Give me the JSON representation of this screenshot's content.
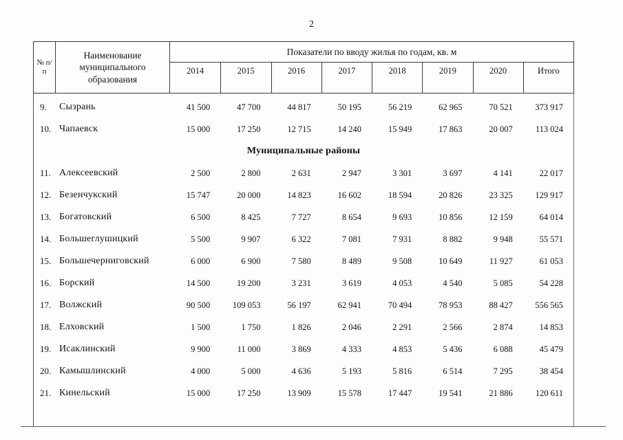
{
  "page": {
    "number": "2"
  },
  "table": {
    "header": {
      "num_col": "№ п/п",
      "name_col": "Наименование муниципального образования",
      "group_title": "Показатели по вводу жилья по годам, кв. м",
      "years": [
        "2014",
        "2015",
        "2016",
        "2017",
        "2018",
        "2019",
        "2020",
        "Итого"
      ]
    },
    "rows": [
      {
        "type": "data",
        "num": "9.",
        "name": "Сызрань",
        "values": [
          "41 500",
          "47 700",
          "44 817",
          "50 195",
          "56 219",
          "62 965",
          "70 521",
          "373 917"
        ]
      },
      {
        "type": "data",
        "num": "10.",
        "name": "Чапаевск",
        "values": [
          "15 000",
          "17 250",
          "12 715",
          "14 240",
          "15 949",
          "17 863",
          "20 007",
          "113 024"
        ]
      },
      {
        "type": "section",
        "title": "Муниципальные районы"
      },
      {
        "type": "data",
        "num": "11.",
        "name": "Алексеевский",
        "values": [
          "2 500",
          "2 800",
          "2 631",
          "2 947",
          "3 301",
          "3 697",
          "4 141",
          "22 017"
        ]
      },
      {
        "type": "data",
        "num": "12.",
        "name": "Безенчукский",
        "values": [
          "15 747",
          "20 000",
          "14 823",
          "16 602",
          "18 594",
          "20 826",
          "23 325",
          "129 917"
        ]
      },
      {
        "type": "data",
        "num": "13.",
        "name": "Богатовский",
        "values": [
          "6 500",
          "8 425",
          "7 727",
          "8 654",
          "9 693",
          "10 856",
          "12 159",
          "64 014"
        ]
      },
      {
        "type": "data",
        "num": "14.",
        "name": "Большеглушицкий",
        "values": [
          "5 500",
          "9 907",
          "6 322",
          "7 081",
          "7 931",
          "8 882",
          "9 948",
          "55 571"
        ]
      },
      {
        "type": "data",
        "num": "15.",
        "name": "Большечерниговский",
        "values": [
          "6 000",
          "6 900",
          "7 580",
          "8 489",
          "9 508",
          "10 649",
          "11 927",
          "61 053"
        ]
      },
      {
        "type": "data",
        "num": "16.",
        "name": "Борский",
        "values": [
          "14 500",
          "19 200",
          "3 231",
          "3 619",
          "4 053",
          "4 540",
          "5 085",
          "54 228"
        ]
      },
      {
        "type": "data",
        "num": "17.",
        "name": "Волжский",
        "values": [
          "90 500",
          "109 053",
          "56 197",
          "62 941",
          "70 494",
          "78 953",
          "88 427",
          "556 565"
        ]
      },
      {
        "type": "data",
        "num": "18.",
        "name": "Елховский",
        "values": [
          "1 500",
          "1 750",
          "1 826",
          "2 046",
          "2 291",
          "2 566",
          "2 874",
          "14 853"
        ]
      },
      {
        "type": "data",
        "num": "19.",
        "name": "Исаклинский",
        "values": [
          "9 900",
          "11 000",
          "3 869",
          "4 333",
          "4 853",
          "5 436",
          "6 088",
          "45 479"
        ]
      },
      {
        "type": "data",
        "num": "20.",
        "name": "Камышлинский",
        "values": [
          "4 000",
          "5 000",
          "4 636",
          "5 193",
          "5 816",
          "6 514",
          "7 295",
          "38 454"
        ]
      },
      {
        "type": "data",
        "num": "21.",
        "name": "Кинельский",
        "values": [
          "15 000",
          "17 250",
          "13 909",
          "15 578",
          "17 447",
          "19 541",
          "21 886",
          "120 611"
        ]
      }
    ]
  }
}
